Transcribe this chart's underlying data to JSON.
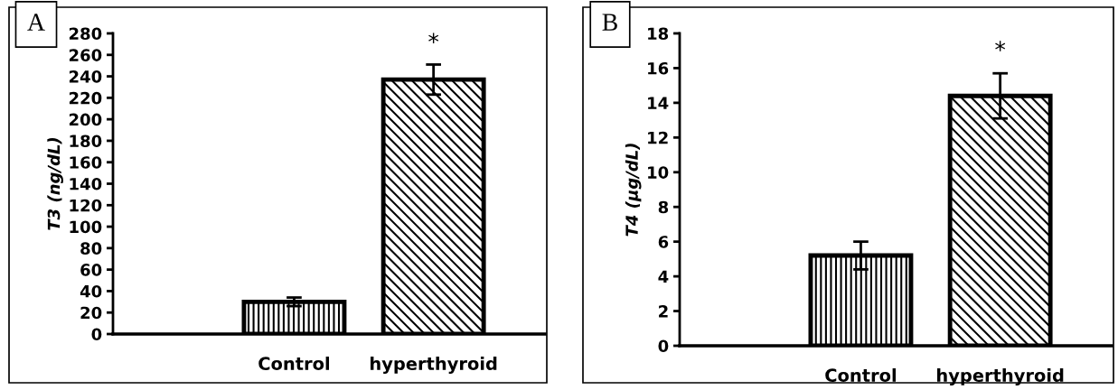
{
  "chart_data": [
    {
      "type": "bar",
      "categories": [
        "Control",
        "hyperthyroid"
      ],
      "values": [
        30,
        237
      ],
      "errors": [
        4,
        14
      ],
      "colors": [
        "#000000",
        "#000000"
      ],
      "ylabel": "T3 (ng/dL)",
      "ylim": [
        0,
        280
      ],
      "yticks": [
        0,
        20,
        40,
        60,
        80,
        100,
        120,
        140,
        160,
        180,
        200,
        220,
        240,
        260,
        280
      ],
      "grid": false,
      "annotations": [
        "A",
        "*"
      ]
    },
    {
      "type": "bar",
      "categories": [
        "Control",
        "hyperthyroid"
      ],
      "values": [
        5.2,
        14.4
      ],
      "errors": [
        0.8,
        1.3
      ],
      "colors": [
        "#000000",
        "#000000"
      ],
      "ylabel": "T4 (µg/dL)",
      "ylim": [
        0,
        18
      ],
      "yticks": [
        0,
        2,
        4,
        6,
        8,
        10,
        12,
        14,
        16,
        18
      ],
      "grid": false,
      "annotations": [
        "B",
        "*"
      ]
    }
  ]
}
